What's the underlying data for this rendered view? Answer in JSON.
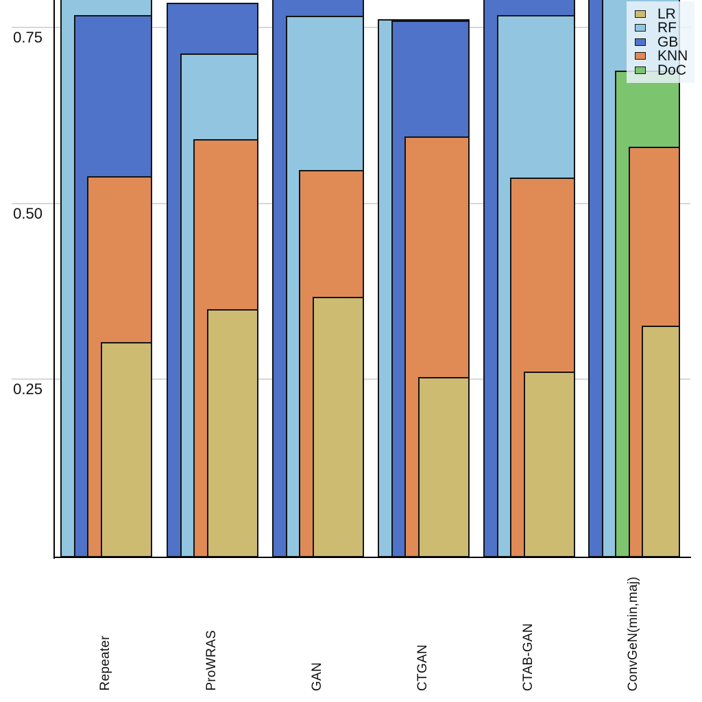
{
  "chart_data": {
    "type": "bar",
    "variant": "overlapping-grouped-bars",
    "title": "",
    "xlabel": "",
    "ylabel": "",
    "categories": [
      "Repeater",
      "ProWRAS",
      "GAN",
      "CTGAN",
      "CTAB-GAN",
      "ConvGeN(min,maj)"
    ],
    "series": [
      {
        "name": "LR",
        "color": "#CEBB72",
        "values": [
          0.303,
          0.35,
          0.367,
          0.253,
          0.261,
          0.326
        ]
      },
      {
        "name": "RF",
        "color": "#92C5E0",
        "values": [
          0.8,
          0.713,
          0.767,
          0.762,
          0.768,
          0.8
        ]
      },
      {
        "name": "GB",
        "color": "#4E73C8",
        "values": [
          0.768,
          0.785,
          0.8,
          0.76,
          0.802,
          0.81
        ]
      },
      {
        "name": "KNN",
        "color": "#E08A56",
        "values": [
          0.539,
          0.591,
          0.547,
          0.595,
          0.537,
          0.581
        ]
      },
      {
        "name": "DoC",
        "color": "#7CC46E",
        "values": [
          null,
          null,
          null,
          null,
          null,
          0.689
        ]
      }
    ],
    "yticks": [
      {
        "value": 0.75,
        "label": "0.75"
      },
      {
        "value": 0.5,
        "label": "0.50"
      },
      {
        "value": 0.25,
        "label": "0.25"
      }
    ],
    "ylim": [
      0,
      0.79
    ],
    "grid": "horizontal",
    "legend": {
      "position": "top-right",
      "items": [
        "LR",
        "RF",
        "GB",
        "KNN",
        "DoC"
      ]
    },
    "note": "Bars within each group overlap front-to-back sorted by height; tallest bars are cropped at the top edge of the image."
  },
  "colors": {
    "grid_line": "#d7d7d7",
    "axis_line": "#000000",
    "bar_border": "#141414",
    "background": "#ffffff",
    "legend_background": "rgba(236,244,251,0.82)"
  }
}
